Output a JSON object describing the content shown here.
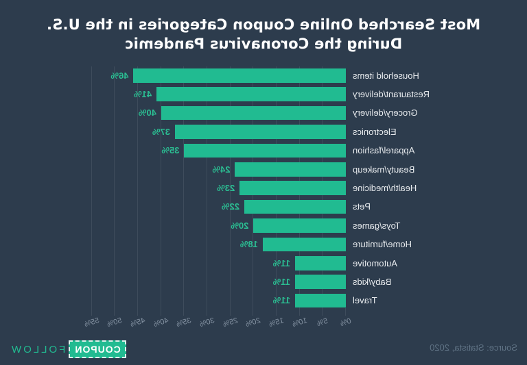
{
  "title": {
    "line1": "Most Searched Online Coupon Categories in the U.S.",
    "line2": "During the Coronavirus Pandemic"
  },
  "chart_data": {
    "type": "bar",
    "orientation": "horizontal",
    "title": "Most Searched Online Coupon Categories in the U.S. During the Coronavirus Pandemic",
    "categories": [
      "Household items",
      "Restaurant/delivery",
      "Grocery/delivery",
      "Electronics",
      "Apparel/fashion",
      "Beauty/makeup",
      "Health/medicine",
      "Pets",
      "Toys/games",
      "Home/furniture",
      "Automotive",
      "Baby/kids",
      "Travel"
    ],
    "values": [
      46,
      41,
      40,
      37,
      35,
      24,
      23,
      22,
      20,
      18,
      11,
      11,
      11
    ],
    "value_suffix": "%",
    "x_ticks": [
      "0%",
      "5%",
      "10%",
      "15%",
      "20%",
      "25%",
      "30%",
      "35%",
      "40%",
      "45%",
      "50%",
      "55%"
    ],
    "xlim": [
      0,
      55
    ],
    "xlabel": "",
    "ylabel": "",
    "grid": true,
    "legend": false,
    "note": "rendered horizontally mirrored"
  },
  "footer": {
    "source": "Source: Statista, 2020",
    "logo": {
      "coupon": "COUPON",
      "follow": "FOLLOW"
    }
  },
  "colors": {
    "background": "#2d3c4d",
    "bar": "#21bb91",
    "value-label": "#2bbf93",
    "category-label": "#e7eaed",
    "tick-label": "#8492a2",
    "gridline": "#3e4c5c",
    "title": "#ffffff",
    "source": "#5f7284",
    "logo-box-bg": "#21bb91",
    "logo-box-text": "#ffffff",
    "logo-follow": "#21bb91"
  }
}
